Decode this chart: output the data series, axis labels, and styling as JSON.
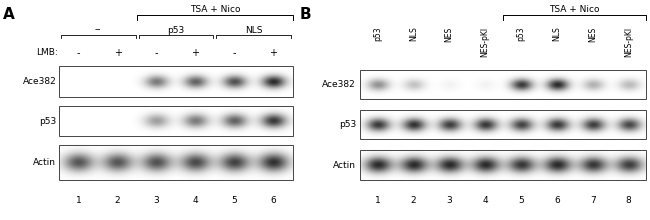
{
  "fig_width": 6.5,
  "fig_height": 2.2,
  "dpi": 100,
  "bg_color": "#ffffff",
  "panel_A": {
    "label": "A",
    "tsa_nico_label": "TSA + Nico",
    "group_labels": [
      "--",
      "p53",
      "NLS"
    ],
    "lmb_label": "LMB:",
    "lmb_values": [
      "-",
      "+",
      "-",
      "+",
      "-",
      "+"
    ],
    "row_labels": [
      "Ace382",
      "p53",
      "Actin"
    ],
    "lane_numbers": [
      "1",
      "2",
      "3",
      "4",
      "5",
      "6"
    ],
    "ace382_intensities": [
      0.0,
      0.0,
      0.55,
      0.65,
      0.72,
      0.88
    ],
    "p53_intensities": [
      0.0,
      0.0,
      0.4,
      0.55,
      0.65,
      0.82
    ],
    "actin_intensities": [
      0.7,
      0.7,
      0.72,
      0.75,
      0.78,
      0.85
    ]
  },
  "panel_B": {
    "label": "B",
    "tsa_nico_label": "TSA + Nico",
    "col_labels": [
      "p53",
      "NLS",
      "NES",
      "NES-pKI",
      "p53",
      "NLS",
      "NES",
      "NES-pKI"
    ],
    "row_labels": [
      "Ace382",
      "p53",
      "Actin"
    ],
    "lane_numbers": [
      "1",
      "2",
      "3",
      "4",
      "5",
      "6",
      "7",
      "8"
    ],
    "ace382_intensities": [
      0.45,
      0.25,
      0.05,
      0.05,
      0.82,
      0.88,
      0.32,
      0.28
    ],
    "p53_intensities": [
      0.82,
      0.85,
      0.8,
      0.83,
      0.78,
      0.82,
      0.8,
      0.76
    ],
    "actin_intensities": [
      0.88,
      0.88,
      0.88,
      0.88,
      0.83,
      0.88,
      0.83,
      0.8
    ]
  }
}
